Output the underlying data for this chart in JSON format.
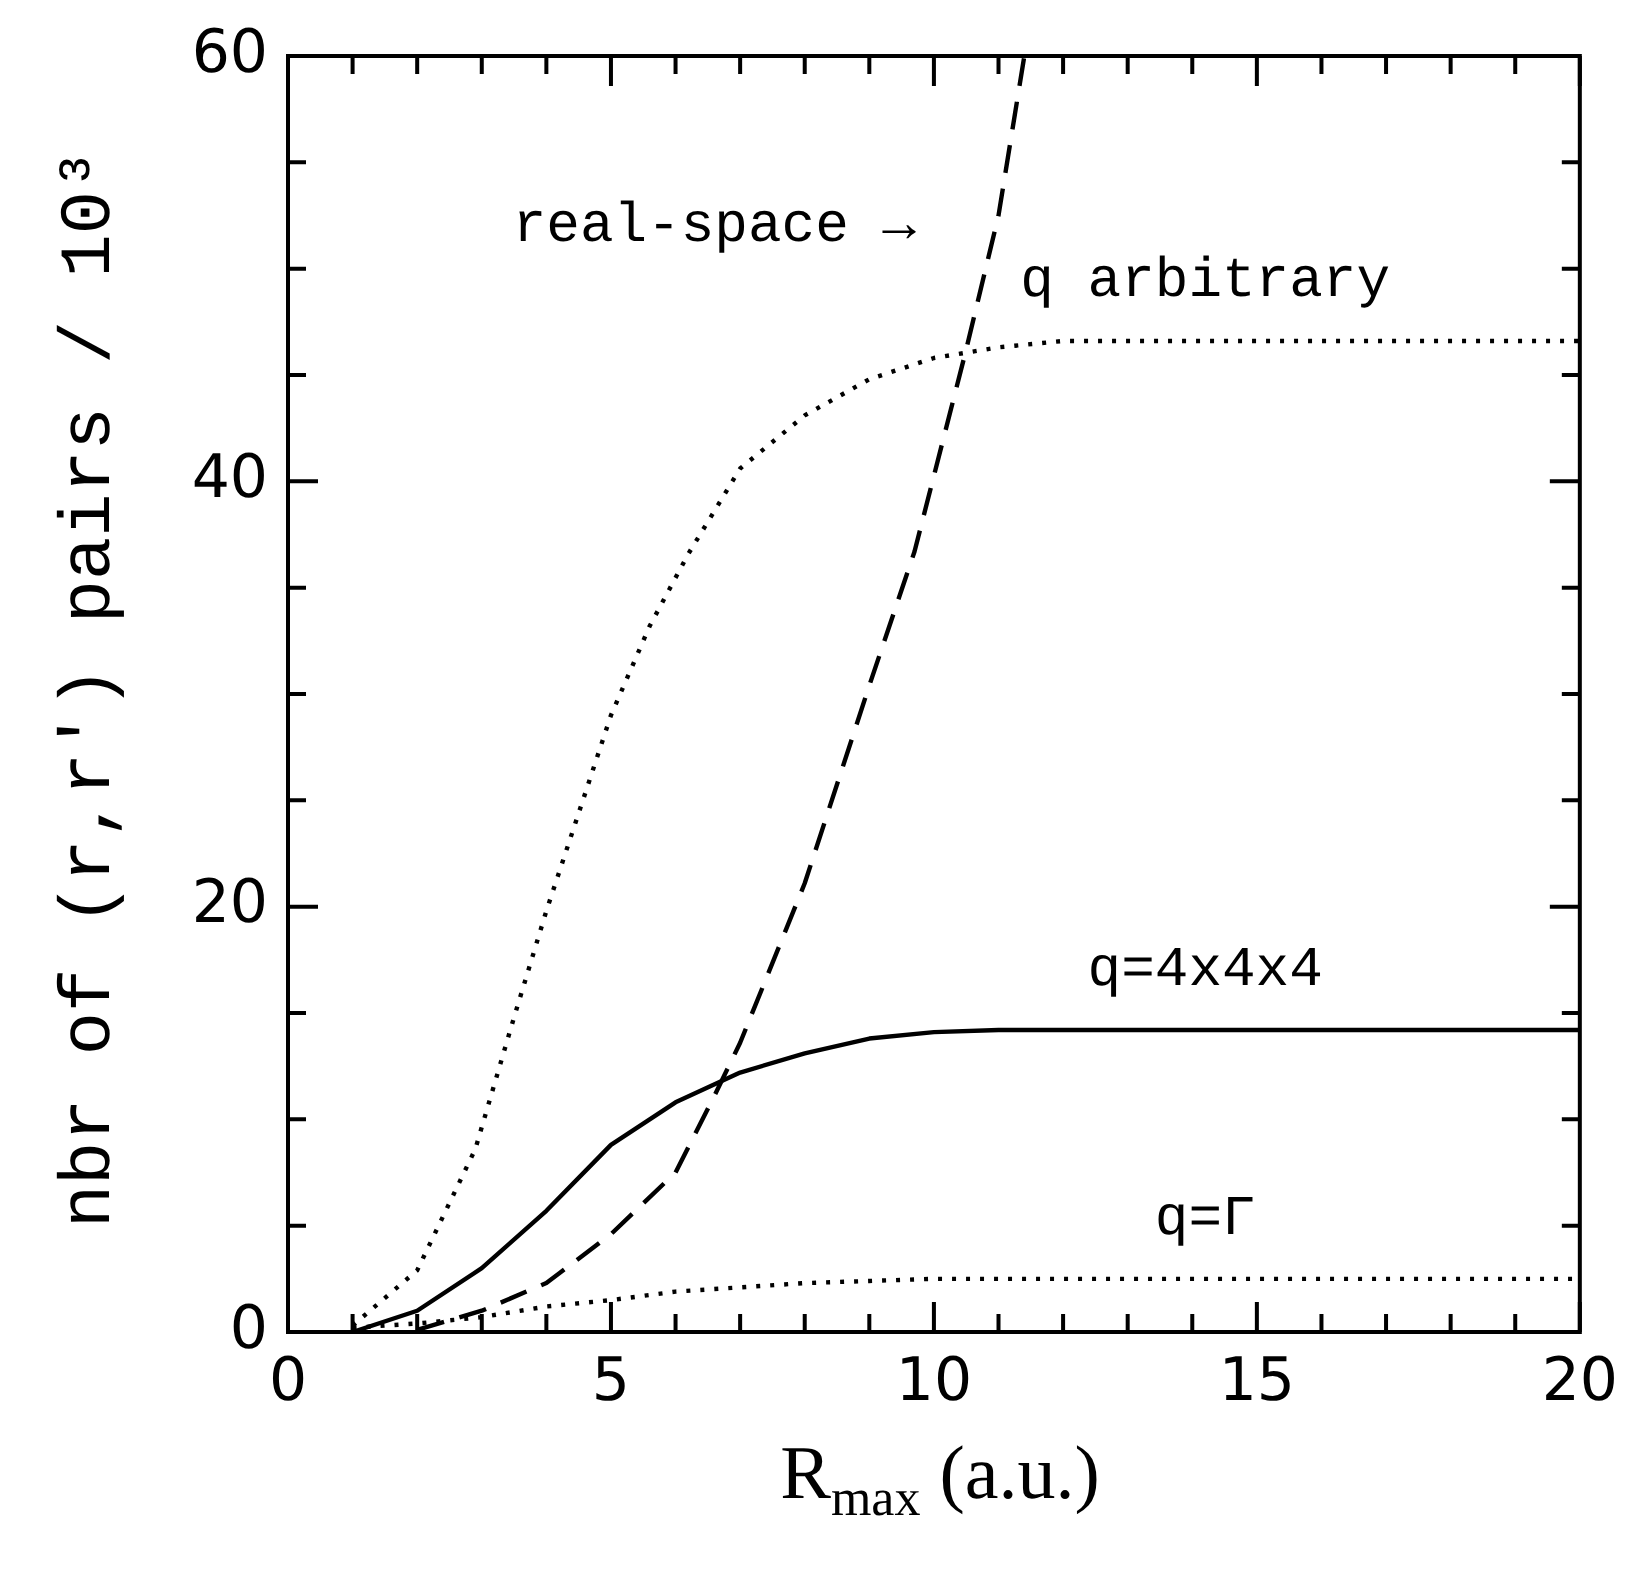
{
  "chart_data": {
    "type": "line",
    "xlabel": "R$_{max}$ (a.u.)",
    "ylabel": "nbr of (r,r') pairs / 10³",
    "xlim": [
      0,
      20
    ],
    "ylim": [
      0,
      60
    ],
    "xticks": [
      0,
      {
        "value": 1,
        "label": null
      },
      {
        "value": 2,
        "label": null
      },
      {
        "value": 3,
        "label": null
      },
      {
        "value": 4,
        "label": null
      },
      5,
      {
        "value": 6,
        "label": null
      },
      {
        "value": 7,
        "label": null
      },
      {
        "value": 8,
        "label": null
      },
      {
        "value": 9,
        "label": null
      },
      10,
      {
        "value": 11,
        "label": null
      },
      {
        "value": 12,
        "label": null
      },
      {
        "value": 13,
        "label": null
      },
      {
        "value": 14,
        "label": null
      },
      15,
      {
        "value": 16,
        "label": null
      },
      {
        "value": 17,
        "label": null
      },
      {
        "value": 18,
        "label": null
      },
      {
        "value": 19,
        "label": null
      },
      20
    ],
    "yticks": [
      0,
      {
        "value": 5,
        "label": null
      },
      {
        "value": 10,
        "label": null
      },
      {
        "value": 15,
        "label": null
      },
      20,
      {
        "value": 25,
        "label": null
      },
      {
        "value": 30,
        "label": null
      },
      {
        "value": 35,
        "label": null
      },
      40,
      {
        "value": 45,
        "label": null
      },
      {
        "value": 50,
        "label": null
      },
      {
        "value": 55,
        "label": null
      },
      60
    ],
    "grid": false,
    "legend": false,
    "marker": "none",
    "series": [
      {
        "name": "q arbitrary",
        "color": "#000000",
        "line_style": "dotted",
        "x": [
          1,
          2,
          2.9,
          3.5,
          4,
          5,
          5.6,
          6.2,
          7,
          8,
          9,
          10,
          11,
          12,
          14,
          20
        ],
        "values": [
          0.3,
          2.9,
          8.6,
          14.8,
          19.8,
          29,
          33.2,
          36.6,
          40.6,
          43.1,
          44.8,
          45.8,
          46.3,
          46.6,
          46.6,
          46.6
        ]
      },
      {
        "name": "real-space →",
        "color": "#000000",
        "line_style": "dashed",
        "x": [
          2,
          3,
          4,
          5,
          6,
          6.6,
          7,
          8,
          9,
          9.7,
          10.5,
          11,
          11.4
        ],
        "values": [
          0.1,
          1,
          2.3,
          4.6,
          7.5,
          11.1,
          13.6,
          21.1,
          30.4,
          36.7,
          46.2,
          52.5,
          60
        ]
      },
      {
        "name": "q=4x4x4",
        "color": "#000000",
        "line_style": "solid",
        "x": [
          1,
          2,
          3,
          4,
          5,
          6,
          7,
          8,
          9,
          10,
          11,
          12,
          20
        ],
        "values": [
          0,
          1,
          3,
          5.7,
          8.8,
          10.8,
          12.2,
          13.1,
          13.8,
          14.1,
          14.2,
          14.2,
          14.2
        ]
      },
      {
        "name": "q=Γ",
        "color": "#000000",
        "line_style": "dotted",
        "x": [
          1,
          2,
          3,
          4,
          5,
          6,
          7,
          8,
          9,
          10,
          12,
          20
        ],
        "values": [
          0.2,
          0.4,
          0.7,
          1.2,
          1.5,
          1.9,
          2.1,
          2.3,
          2.4,
          2.5,
          2.5,
          2.5
        ]
      }
    ]
  }
}
